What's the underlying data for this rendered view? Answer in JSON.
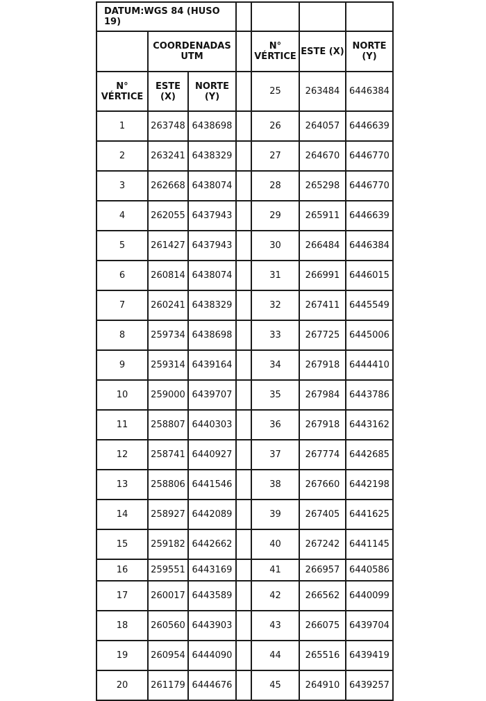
{
  "header": {
    "datum": "DATUM:WGS 84 (HUSO 19)",
    "coordenadas": "COORDENADAS UTM",
    "vertice": "N° VÉRTICE",
    "este": "ESTE (X)",
    "norte": "NORTE (Y)"
  },
  "first_right_row": {
    "vertice": "25",
    "este": "263484",
    "norte": "6446384"
  },
  "rows": [
    [
      "1",
      "263748",
      "6438698",
      "26",
      "264057",
      "6446639"
    ],
    [
      "2",
      "263241",
      "6438329",
      "27",
      "264670",
      "6446770"
    ],
    [
      "3",
      "262668",
      "6438074",
      "28",
      "265298",
      "6446770"
    ],
    [
      "4",
      "262055",
      "6437943",
      "29",
      "265911",
      "6446639"
    ],
    [
      "5",
      "261427",
      "6437943",
      "30",
      "266484",
      "6446384"
    ],
    [
      "6",
      "260814",
      "6438074",
      "31",
      "266991",
      "6446015"
    ],
    [
      "7",
      "260241",
      "6438329",
      "32",
      "267411",
      "6445549"
    ],
    [
      "8",
      "259734",
      "6438698",
      "33",
      "267725",
      "6445006"
    ],
    [
      "9",
      "259314",
      "6439164",
      "34",
      "267918",
      "6444410"
    ],
    [
      "10",
      "259000",
      "6439707",
      "35",
      "267984",
      "6443786"
    ],
    [
      "11",
      "258807",
      "6440303",
      "36",
      "267918",
      "6443162"
    ],
    [
      "12",
      "258741",
      "6440927",
      "37",
      "267774",
      "6442685"
    ],
    [
      "13",
      "258806",
      "6441546",
      "38",
      "267660",
      "6442198"
    ],
    [
      "14",
      "258927",
      "6442089",
      "39",
      "267405",
      "6441625"
    ],
    [
      "15",
      "259182",
      "6442662",
      "40",
      "267242",
      "6441145"
    ],
    [
      "16",
      "259551",
      "6443169",
      "41",
      "266957",
      "6440586"
    ],
    [
      "17",
      "260017",
      "6443589",
      "42",
      "266562",
      "6440099"
    ],
    [
      "18",
      "260560",
      "6443903",
      "43",
      "266075",
      "6439704"
    ],
    [
      "19",
      "260954",
      "6444090",
      "44",
      "265516",
      "6439419"
    ],
    [
      "20",
      "261179",
      "6444676",
      "45",
      "264910",
      "6439257"
    ]
  ]
}
